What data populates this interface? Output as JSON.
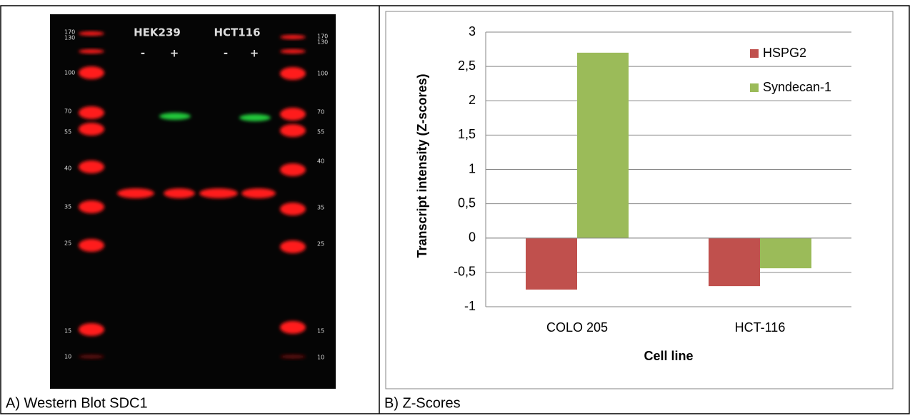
{
  "figure": {
    "caption_a": "A) Western Blot SDC1",
    "caption_b": "B) Z-Scores",
    "blot": {
      "lane_groups": [
        "HEK239",
        "HCT116"
      ],
      "lane_signs": [
        "-",
        "+",
        "-",
        "+"
      ],
      "ladder_left": [
        "170",
        "130",
        "100",
        "70",
        "55",
        "40",
        "35",
        "25",
        "15",
        "10"
      ],
      "ladder_right": [
        "170",
        "130",
        "100",
        "70",
        "55",
        "40",
        "35",
        "25",
        "15",
        "10"
      ]
    }
  },
  "chart_data": {
    "type": "bar",
    "x_label": "Cell line",
    "y_label": "Transcript intensity (Z-scores)",
    "categories": [
      "COLO 205",
      "HCT-116"
    ],
    "series": [
      {
        "name": "HSPG2",
        "color": "#c0504d",
        "values": [
          -0.75,
          -0.7
        ]
      },
      {
        "name": "Syndecan-1",
        "color": "#9bbb59",
        "values": [
          2.7,
          -0.44
        ]
      }
    ],
    "ylim": [
      -1,
      3
    ],
    "yticks": [
      -1,
      {
        "value": -0.5,
        "label": "-0,5"
      },
      0,
      {
        "value": 0.5,
        "label": "0,5"
      },
      1,
      {
        "value": 1.5,
        "label": "1,5"
      },
      2,
      {
        "value": 2.5,
        "label": "2,5"
      },
      3
    ],
    "grid": true,
    "legend": "upper right"
  }
}
